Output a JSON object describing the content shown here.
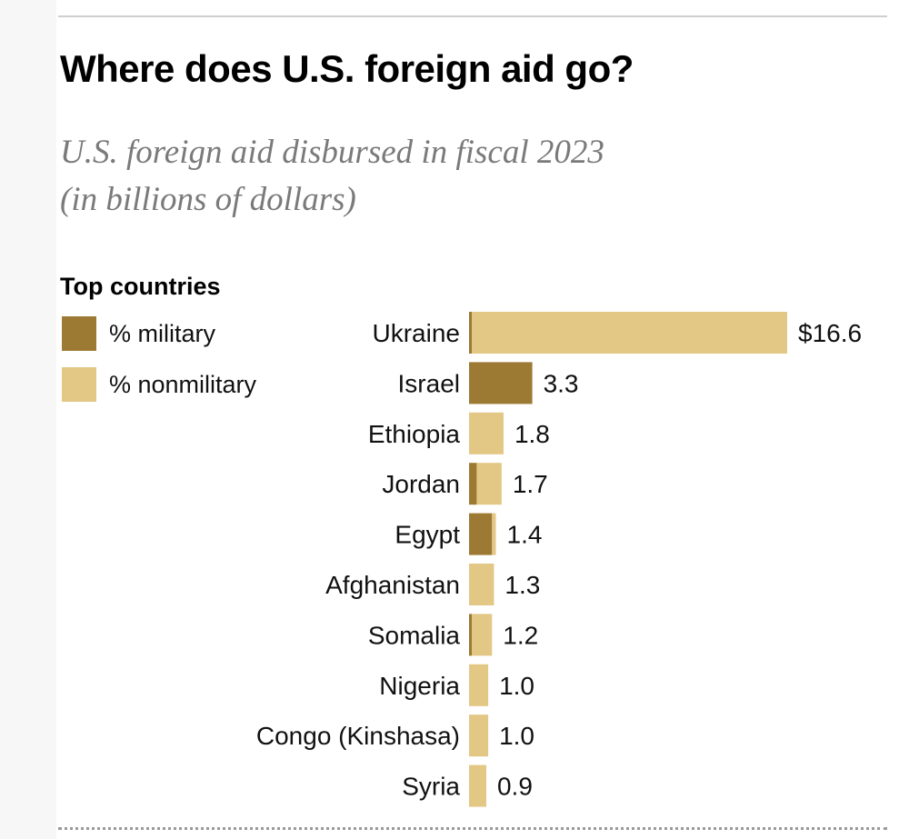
{
  "title": "Where does U.S. foreign aid go?",
  "subtitle_line1": "U.S. foreign aid disbursed in fiscal 2023",
  "subtitle_line2": "(in billions of dollars)",
  "section_title": "Top countries",
  "legend": {
    "military_label": "% military",
    "nonmilitary_label": "% nonmilitary"
  },
  "colors": {
    "military": "#9c7a33",
    "nonmilitary": "#e3c784"
  },
  "chart_data": {
    "type": "bar",
    "orientation": "horizontal",
    "stacked": true,
    "title": "Where does U.S. foreign aid go?",
    "subtitle": "U.S. foreign aid disbursed in fiscal 2023 (in billions of dollars)",
    "xlabel": "",
    "ylabel": "",
    "xlim": [
      0,
      16.6
    ],
    "categories": [
      "Ukraine",
      "Israel",
      "Ethiopia",
      "Jordan",
      "Egypt",
      "Afghanistan",
      "Somalia",
      "Nigeria",
      "Congo (Kinshasa)",
      "Syria"
    ],
    "totals": [
      16.6,
      3.3,
      1.8,
      1.7,
      1.4,
      1.3,
      1.2,
      1.0,
      1.0,
      0.9
    ],
    "value_labels": [
      "$16.6",
      "3.3",
      "1.8",
      "1.7",
      "1.4",
      "1.3",
      "1.2",
      "1.0",
      "1.0",
      "0.9"
    ],
    "series": [
      {
        "name": "% military",
        "values": [
          0.1,
          3.3,
          0.0,
          0.4,
          1.2,
          0.0,
          0.1,
          0.0,
          0.0,
          0.0
        ]
      },
      {
        "name": "% nonmilitary",
        "values": [
          16.5,
          0.0,
          1.8,
          1.3,
          0.2,
          1.3,
          1.1,
          1.0,
          1.0,
          0.9
        ]
      }
    ]
  }
}
